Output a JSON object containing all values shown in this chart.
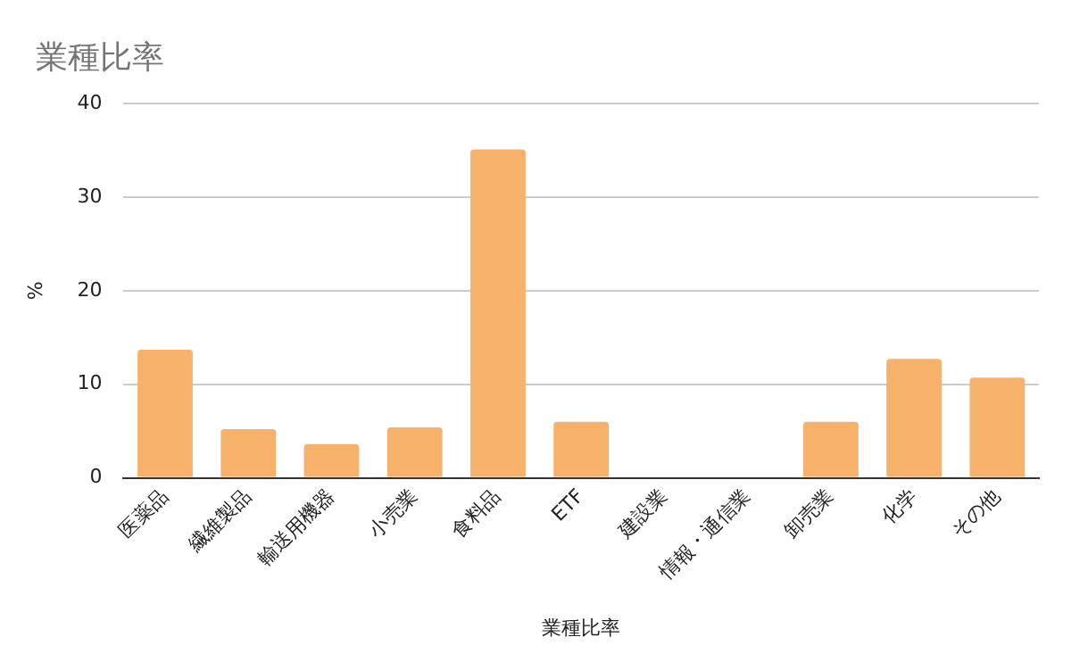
{
  "chart_data": {
    "type": "bar",
    "title": "業種比率",
    "xlabel": "業種比率",
    "ylabel": "%",
    "categories": [
      "医薬品",
      "繊維製品",
      "輸送用機器",
      "小売業",
      "食料品",
      "ETF",
      "建設業",
      "情報・通信業",
      "卸売業",
      "化学",
      "その他"
    ],
    "values": [
      13.7,
      5.2,
      3.6,
      5.4,
      35.1,
      6.0,
      0,
      0,
      6.0,
      12.7,
      10.7
    ],
    "color": "#f6b26b",
    "ylim": [
      0,
      40
    ],
    "yticks": [
      0,
      10,
      20,
      30,
      40
    ],
    "grid": "y",
    "legend": false
  }
}
